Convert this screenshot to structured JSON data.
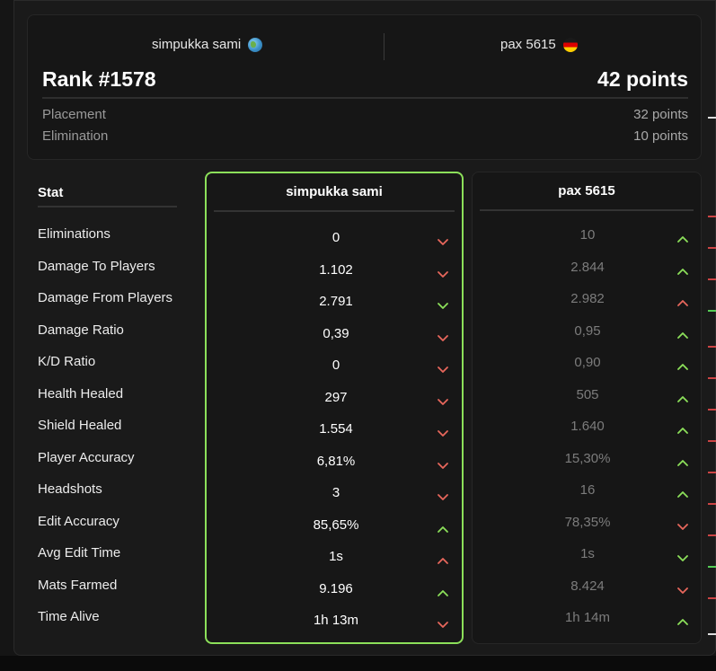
{
  "header": {
    "player1": {
      "name": "simpukka sami",
      "flag_icon": "globe-icon"
    },
    "player2": {
      "name": "pax 5615",
      "flag_icon": "germany-flag-icon"
    },
    "rank": "Rank #1578",
    "points": "42 points",
    "breakdown": [
      {
        "label": "Placement",
        "value": "32 points"
      },
      {
        "label": "Elimination",
        "value": "10 points"
      }
    ]
  },
  "table": {
    "stat_header": "Stat",
    "col1_header": "simpukka sami",
    "col2_header": "pax 5615",
    "rows": [
      {
        "stat": "Eliminations",
        "p1": "0",
        "p1_trend": "down",
        "p2": "10",
        "p2_trend": "up"
      },
      {
        "stat": "Damage To Players",
        "p1": "1.102",
        "p1_trend": "down",
        "p2": "2.844",
        "p2_trend": "up"
      },
      {
        "stat": "Damage From Players",
        "p1": "2.791",
        "p1_trend": "down-good",
        "p2": "2.982",
        "p2_trend": "up-bad"
      },
      {
        "stat": "Damage Ratio",
        "p1": "0,39",
        "p1_trend": "down",
        "p2": "0,95",
        "p2_trend": "up"
      },
      {
        "stat": "K/D Ratio",
        "p1": "0",
        "p1_trend": "down",
        "p2": "0,90",
        "p2_trend": "up"
      },
      {
        "stat": "Health Healed",
        "p1": "297",
        "p1_trend": "down",
        "p2": "505",
        "p2_trend": "up"
      },
      {
        "stat": "Shield Healed",
        "p1": "1.554",
        "p1_trend": "down",
        "p2": "1.640",
        "p2_trend": "up"
      },
      {
        "stat": "Player Accuracy",
        "p1": "6,81%",
        "p1_trend": "down",
        "p2": "15,30%",
        "p2_trend": "up"
      },
      {
        "stat": "Headshots",
        "p1": "3",
        "p1_trend": "down",
        "p2": "16",
        "p2_trend": "up"
      },
      {
        "stat": "Edit Accuracy",
        "p1": "85,65%",
        "p1_trend": "up",
        "p2": "78,35%",
        "p2_trend": "down"
      },
      {
        "stat": "Avg Edit Time",
        "p1": "1s",
        "p1_trend": "up-bad",
        "p2": "1s",
        "p2_trend": "down-good"
      },
      {
        "stat": "Mats Farmed",
        "p1": "9.196",
        "p1_trend": "up",
        "p2": "8.424",
        "p2_trend": "down"
      },
      {
        "stat": "Time Alive",
        "p1": "1h 13m",
        "p1_trend": "down",
        "p2": "1h 14m",
        "p2_trend": "up"
      }
    ]
  },
  "colors": {
    "good": "#8ce05a",
    "bad": "#e8675c",
    "highlight_border": "#8ce05a"
  }
}
